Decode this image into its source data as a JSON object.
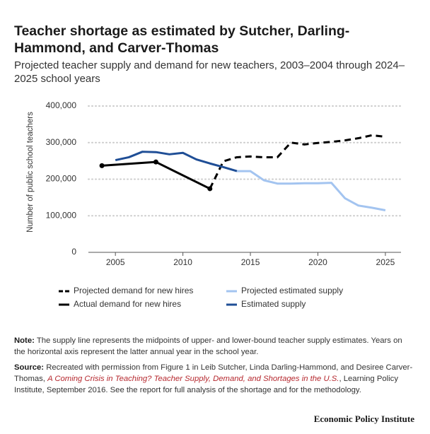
{
  "chart_data": {
    "type": "line",
    "title": "Teacher shortage as estimated by Sutcher, Darling-Hammond, and Carver-Thomas",
    "subtitle": "Projected teacher supply and demand for new teachers, 2003–2004 through 2024–2025 school years",
    "y_label": "Number of public school teachers",
    "xlim": [
      2003,
      2026
    ],
    "xticks": [
      2005,
      2010,
      2015,
      2020,
      2025
    ],
    "ylim": [
      0,
      400000
    ],
    "yticks": [
      0,
      {
        "value": 100000,
        "label": "100,000"
      },
      {
        "value": 200000,
        "label": "200,000"
      },
      {
        "value": 300000,
        "label": "300,000"
      },
      {
        "value": 400000,
        "label": "400,000"
      }
    ],
    "grid": true,
    "series": [
      {
        "name": "Projected demand for new hires",
        "color": "#000000",
        "dash": "dashed",
        "x": [
          2012,
          2013,
          2014,
          2015,
          2016,
          2017,
          2018,
          2019,
          2020,
          2021,
          2022,
          2023,
          2024,
          2025
        ],
        "values": [
          174000,
          249000,
          260000,
          262000,
          260000,
          260000,
          300000,
          295000,
          299000,
          302000,
          306000,
          312000,
          320000,
          316000
        ]
      },
      {
        "name": "Projected estimated supply",
        "color": "#a3c4f0",
        "dash": "solid",
        "x": [
          2014,
          2015,
          2016,
          2017,
          2018,
          2019,
          2020,
          2021,
          2022,
          2023,
          2024,
          2025
        ],
        "values": [
          222000,
          222000,
          197000,
          188000,
          188000,
          189000,
          189000,
          190000,
          148000,
          128000,
          122000,
          115000
        ]
      },
      {
        "name": "Actual demand for new hires",
        "color": "#000000",
        "dash": "solid",
        "markers": true,
        "x": [
          2004,
          2008,
          2012
        ],
        "values": [
          237000,
          247000,
          174000
        ]
      },
      {
        "name": "Estimated supply",
        "color": "#1f4e96",
        "dash": "solid",
        "x": [
          2005,
          2006,
          2007,
          2008,
          2009,
          2010,
          2011,
          2012,
          2013,
          2014
        ],
        "values": [
          252000,
          260000,
          275000,
          274000,
          268000,
          272000,
          254000,
          243000,
          233000,
          222000
        ]
      }
    ]
  },
  "notes": {
    "note_label": "Note:",
    "note_text": "The supply line represents the midpoints of upper- and lower-bound teacher supply estimates. Years on the horizontal axis represent the latter annual year in the school year.",
    "source_label": "Source:",
    "source_text_1": "Recreated with permission from Figure 1 in Leib Sutcher, Linda Darling-Hammond, and Desiree Carver-Thomas,",
    "source_link": "A Coming Crisis in Teaching? Teacher Supply, Demand, and Shortages in the U.S.",
    "source_text_2": ", Learning Policy Institute, September 2016. See the report for full analysis of the shortage and for the methodology."
  },
  "footer": "Economic Policy Institute"
}
